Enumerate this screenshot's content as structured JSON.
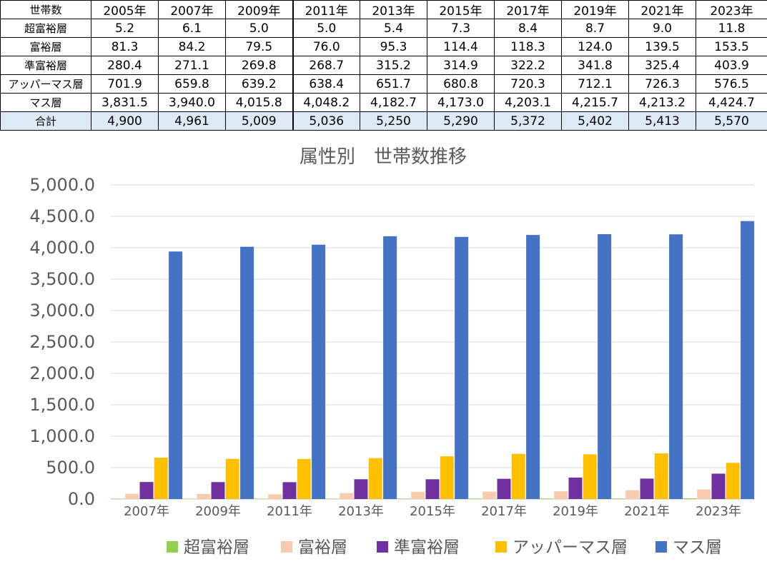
{
  "table": {
    "corner": "世帯数",
    "years": [
      "2005年",
      "2007年",
      "2009年",
      "2011年",
      "2013年",
      "2015年",
      "2017年",
      "2019年",
      "2021年",
      "2023年"
    ],
    "rows": [
      {
        "label": "超富裕層",
        "values": [
          "5.2",
          "6.1",
          "5.0",
          "5.0",
          "5.4",
          "7.3",
          "8.4",
          "8.7",
          "9.0",
          "11.8"
        ]
      },
      {
        "label": "富裕層",
        "values": [
          "81.3",
          "84.2",
          "79.5",
          "76.0",
          "95.3",
          "114.4",
          "118.3",
          "124.0",
          "139.5",
          "153.5"
        ]
      },
      {
        "label": "準富裕層",
        "values": [
          "280.4",
          "271.1",
          "269.8",
          "268.7",
          "315.2",
          "314.9",
          "322.2",
          "341.8",
          "325.4",
          "403.9"
        ]
      },
      {
        "label": "アッパーマス層",
        "values": [
          "701.9",
          "659.8",
          "639.2",
          "638.4",
          "651.7",
          "680.8",
          "720.3",
          "712.1",
          "726.3",
          "576.5"
        ]
      },
      {
        "label": "マス層",
        "values": [
          "3,831.5",
          "3,940.0",
          "4,015.8",
          "4,048.2",
          "4,182.7",
          "4,173.0",
          "4,203.1",
          "4,215.7",
          "4,213.2",
          "4,424.7"
        ]
      },
      {
        "label": "合計",
        "values": [
          "4,900",
          "4,961",
          "5,009",
          "5,036",
          "5,250",
          "5,290",
          "5,372",
          "5,402",
          "5,413",
          "5,570"
        ]
      }
    ]
  },
  "chart_data": {
    "type": "bar",
    "title": "属性別　世帯数推移",
    "categories": [
      "2007年",
      "2009年",
      "2011年",
      "2013年",
      "2015年",
      "2017年",
      "2019年",
      "2021年",
      "2023年"
    ],
    "ylim": [
      0,
      5000
    ],
    "yticks": [
      "0.0",
      "500.0",
      "1,000.0",
      "1,500.0",
      "2,000.0",
      "2,500.0",
      "3,000.0",
      "3,500.0",
      "4,000.0",
      "4,500.0",
      "5,000.0"
    ],
    "grid": true,
    "legend_position": "bottom",
    "series": [
      {
        "name": "超富裕層",
        "color": "#92d050",
        "values": [
          6.1,
          5.0,
          5.0,
          5.4,
          7.3,
          8.4,
          8.7,
          9.0,
          11.8
        ]
      },
      {
        "name": "富裕層",
        "color": "#f8cbad",
        "values": [
          84.2,
          79.5,
          76.0,
          95.3,
          114.4,
          118.3,
          124.0,
          139.5,
          153.5
        ]
      },
      {
        "name": "準富裕層",
        "color": "#7030a0",
        "values": [
          271.1,
          269.8,
          268.7,
          315.2,
          314.9,
          322.2,
          341.8,
          325.4,
          403.9
        ]
      },
      {
        "name": "アッパーマス層",
        "color": "#ffc000",
        "values": [
          659.8,
          639.2,
          638.4,
          651.7,
          680.8,
          720.3,
          712.1,
          726.3,
          576.5
        ]
      },
      {
        "name": "マス層",
        "color": "#4472c4",
        "values": [
          3940.0,
          4015.8,
          4048.2,
          4182.7,
          4173.0,
          4203.1,
          4215.7,
          4213.2,
          4424.7
        ]
      }
    ]
  }
}
